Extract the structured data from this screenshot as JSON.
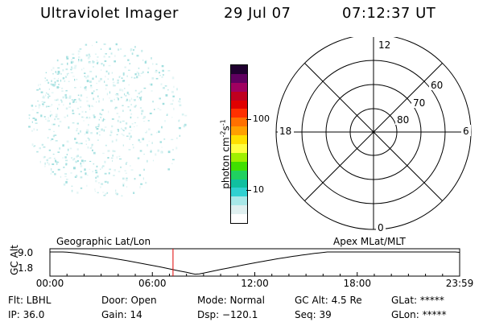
{
  "header": {
    "title": "Ultraviolet Imager",
    "date": "29 Jul 07",
    "time": "07:12:37 UT"
  },
  "colorbar": {
    "unit_label": "photon cm",
    "unit_sup1": "-2",
    "unit_mid": "s",
    "unit_sup2": "-1",
    "tick_100": "100",
    "tick_10": "10",
    "colors": [
      "#ffffff",
      "#e0f0f0",
      "#a8e8e8",
      "#30d0d0",
      "#10c0a0",
      "#20d060",
      "#40e000",
      "#a0f000",
      "#ffff40",
      "#ffe000",
      "#ffa000",
      "#ff7000",
      "#ff3000",
      "#e00000",
      "#c00020",
      "#a00060",
      "#600060",
      "#200030"
    ]
  },
  "polar": {
    "label_top": "12",
    "label_bottom": "0",
    "label_left": "18",
    "label_right": "6",
    "lat_60": "60",
    "lat_70": "70",
    "lat_80": "80"
  },
  "timeline": {
    "y_label": "GC Alt",
    "y_top": "9.0",
    "y_bottom": "1.8",
    "left_caption": "Geographic Lat/Lon",
    "right_caption": "Apex MLat/MLT",
    "ticks": [
      "00:00",
      "06:00",
      "12:00",
      "18:00",
      "23:59"
    ],
    "current_hour": 7.21,
    "marker_color": "#e00000"
  },
  "status": {
    "filter": "Flt: LBHL",
    "ip": "IP: 36.0",
    "door": "Door: Open",
    "gain": "Gain: 14",
    "mode": "Mode: Normal",
    "dsp": "Dsp: −120.1",
    "gc_alt": "GC Alt: 4.5 Re",
    "seq": "Seq: 39",
    "glat": "GLat: *****",
    "glon": "GLon: *****"
  }
}
